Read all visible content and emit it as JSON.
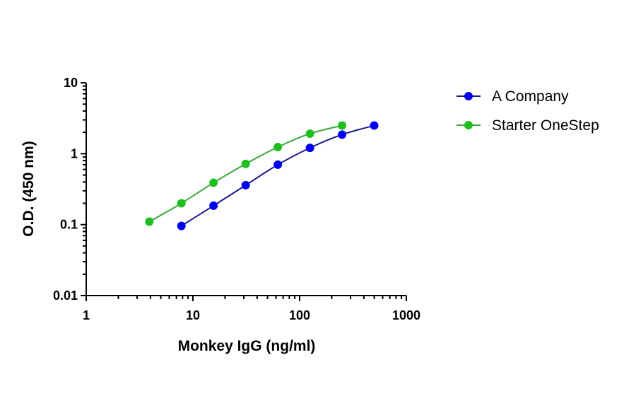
{
  "chart_data": {
    "type": "line",
    "title": "",
    "xlabel": "Monkey IgG (ng/ml)",
    "ylabel": "O.D. (450 nm)",
    "xscale": "log",
    "yscale": "log",
    "xlim": [
      1,
      1000
    ],
    "ylim": [
      0.01,
      10
    ],
    "x_ticks": [
      "1",
      "10",
      "100",
      "1000"
    ],
    "y_ticks": [
      "0.01",
      "0.1",
      "1",
      "10"
    ],
    "grid": false,
    "legend_position": "right-top",
    "series": [
      {
        "name": "A Company",
        "color": "#0000ee",
        "line_color": "#1a1a8c",
        "x": [
          7.8,
          15.6,
          31.25,
          62.5,
          125,
          250,
          500
        ],
        "values": [
          0.096,
          0.185,
          0.36,
          0.7,
          1.21,
          1.86,
          2.5
        ]
      },
      {
        "name": "Starter OneStep",
        "color": "#1fbf1f",
        "line_color": "#3aa83a",
        "x": [
          3.9,
          7.8,
          15.6,
          31.25,
          62.5,
          125,
          250
        ],
        "values": [
          0.11,
          0.2,
          0.39,
          0.72,
          1.24,
          1.92,
          2.5
        ]
      }
    ]
  },
  "legend": {
    "items": [
      {
        "label": "A Company"
      },
      {
        "label": "Starter OneStep"
      }
    ]
  }
}
